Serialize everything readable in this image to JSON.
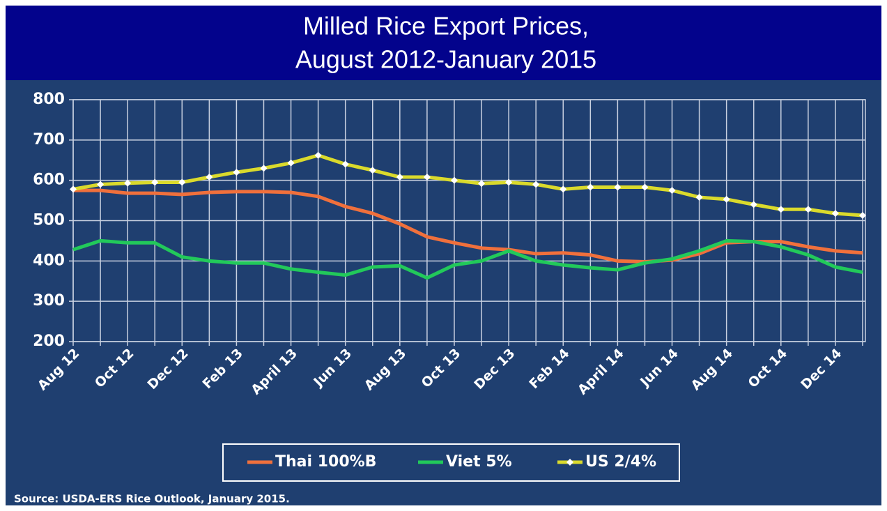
{
  "chart_data": {
    "type": "line",
    "title": [
      "Milled Rice Export Prices,",
      "August 2012-January 2015"
    ],
    "source": "Source: USDA-ERS Rice Outlook, January 2015.",
    "categories": [
      "Aug 12",
      null,
      "Oct 12",
      null,
      "Dec 12",
      null,
      "Feb 13",
      null,
      "April 13",
      null,
      "Jun 13",
      null,
      "Aug 13",
      null,
      "Oct 13",
      null,
      "Dec 13",
      null,
      "Feb 14",
      null,
      "April 14",
      null,
      "Jun 14",
      null,
      "Aug 14",
      null,
      "Oct 14",
      null,
      "Dec 14",
      null
    ],
    "series": [
      {
        "name": "Thai 100%B",
        "color": "#f0703c",
        "values": [
          575,
          575,
          568,
          568,
          565,
          570,
          572,
          572,
          570,
          560,
          535,
          518,
          492,
          460,
          445,
          432,
          428,
          418,
          420,
          415,
          400,
          398,
          402,
          418,
          445,
          448,
          448,
          435,
          425,
          420
        ]
      },
      {
        "name": "Viet 5%",
        "color": "#22c95a",
        "values": [
          428,
          450,
          445,
          445,
          410,
          400,
          395,
          395,
          380,
          372,
          365,
          385,
          388,
          358,
          390,
          400,
          425,
          400,
          390,
          383,
          378,
          395,
          405,
          425,
          450,
          448,
          435,
          415,
          385,
          372
        ]
      },
      {
        "name": "US 2/4%",
        "color": "#dada2c",
        "marker": "diamond",
        "values": [
          578,
          590,
          593,
          595,
          595,
          608,
          620,
          630,
          643,
          662,
          640,
          625,
          608,
          608,
          600,
          592,
          595,
          590,
          578,
          583,
          583,
          583,
          575,
          558,
          553,
          540,
          528,
          528,
          518,
          513
        ]
      }
    ],
    "ylim": [
      200,
      800
    ],
    "yticks": [
      200,
      300,
      400,
      500,
      600,
      700,
      800
    ],
    "grid": true
  }
}
